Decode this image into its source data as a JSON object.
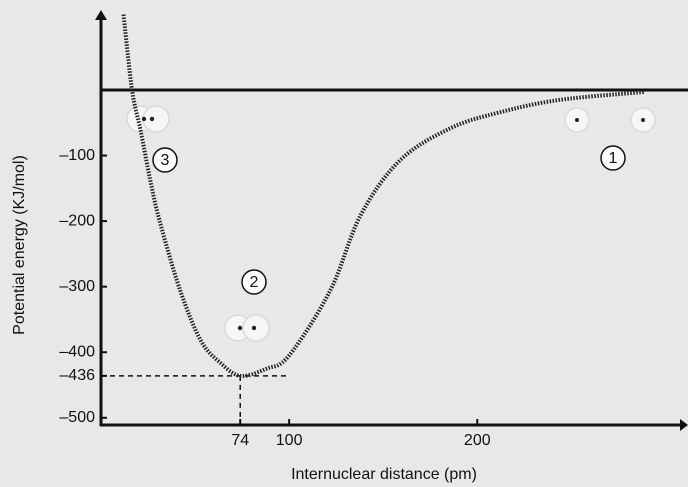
{
  "chart_data": {
    "type": "line",
    "x_label": "Internuclear distance (pm)",
    "y_label": "Potential energy (KJ/mol)",
    "x": [
      12,
      16.5,
      21,
      26,
      31,
      42,
      53,
      63,
      74,
      88,
      100,
      122,
      138,
      159,
      186,
      212,
      244,
      289
    ],
    "values": [
      115,
      0,
      -61,
      -135,
      -198,
      -305,
      -382,
      -415,
      -436,
      -425,
      -405,
      -305,
      -191,
      -107,
      -58,
      -34,
      -15,
      -3
    ],
    "color": "#222222",
    "xlim": [
      0,
      312
    ],
    "ylim": [
      -511,
      122
    ],
    "xticks": [
      74,
      100,
      200
    ],
    "yticks": [
      {
        "value": -100,
        "label": "–100"
      },
      {
        "value": -200,
        "label": "–200"
      },
      {
        "value": -300,
        "label": "–300"
      },
      {
        "value": -400,
        "label": "–400"
      },
      {
        "value": -436,
        "label": "–436"
      },
      {
        "value": -500,
        "label": "–500"
      }
    ],
    "reference": {
      "x": 74,
      "y": -436
    },
    "annotations": [
      "1",
      "2",
      "3"
    ]
  }
}
